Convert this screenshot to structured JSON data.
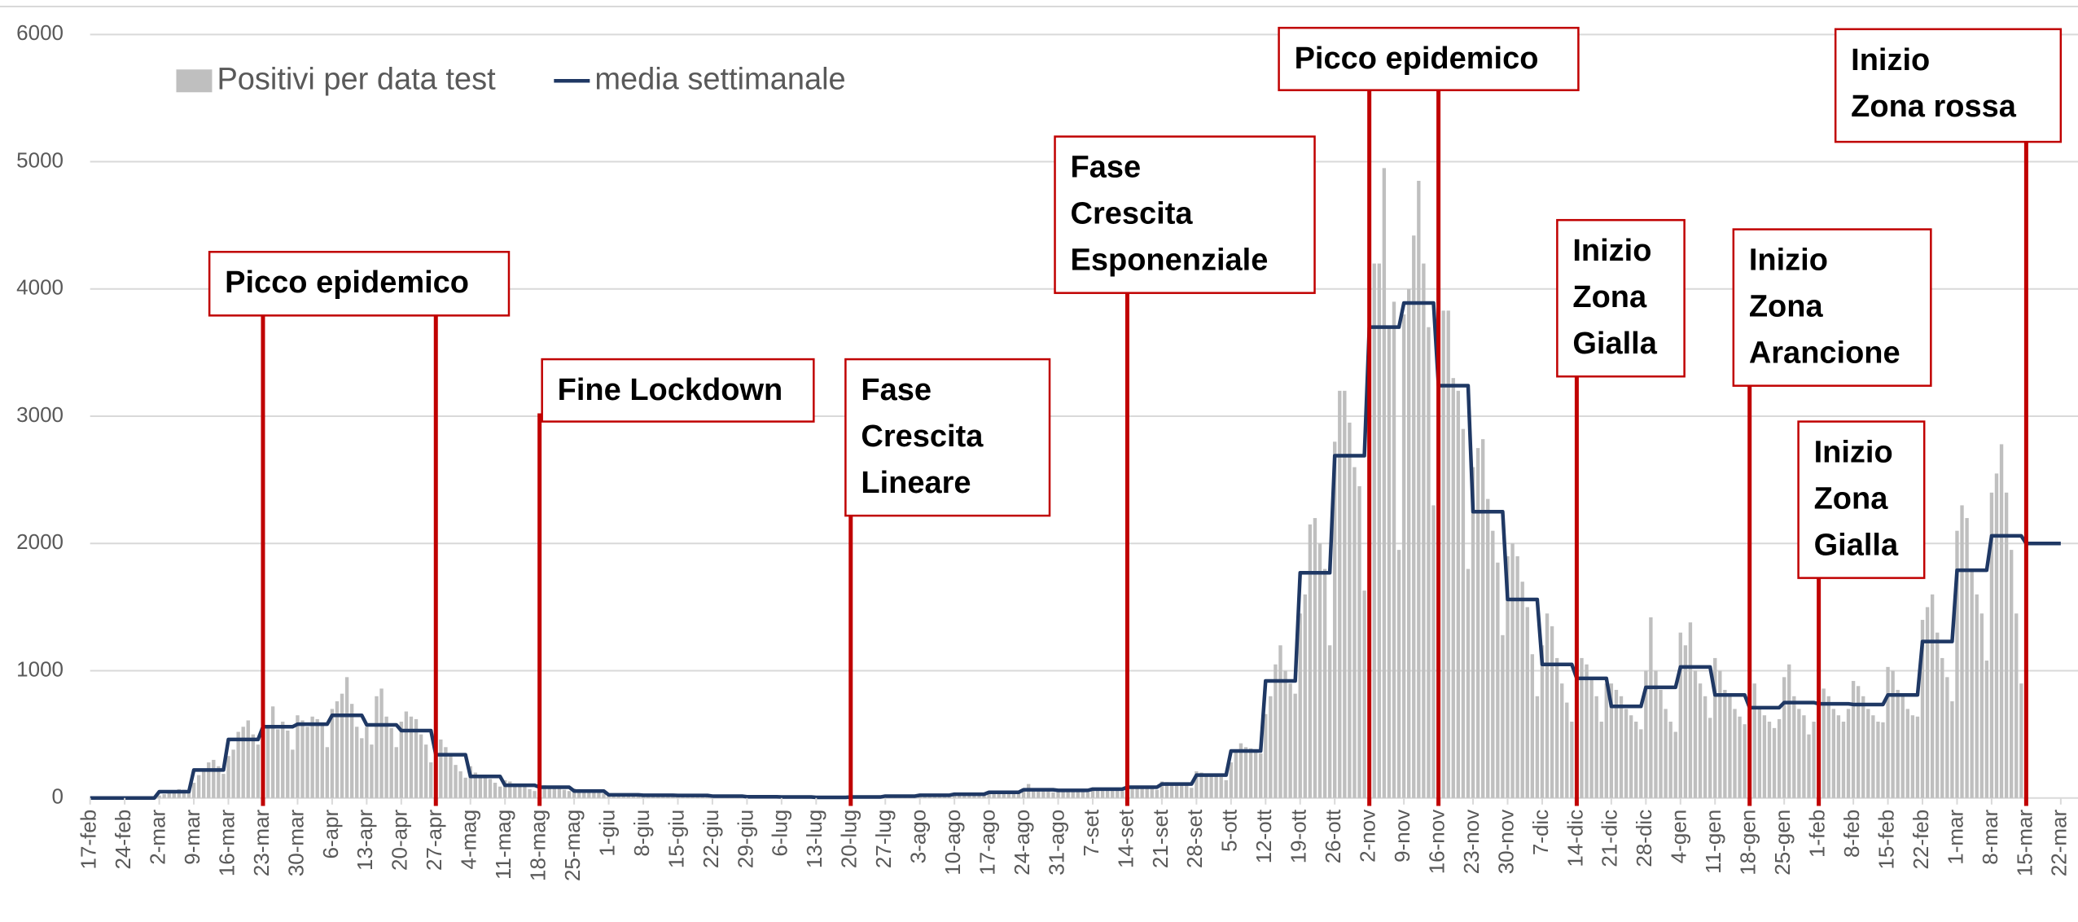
{
  "chart_data": {
    "type": "bar",
    "categories": [
      "17-feb",
      null,
      null,
      null,
      null,
      null,
      null,
      "24-feb",
      null,
      null,
      null,
      null,
      null,
      null,
      "2-mar",
      null,
      null,
      null,
      null,
      null,
      null,
      "9-mar",
      null,
      null,
      null,
      null,
      null,
      null,
      "16-mar",
      null,
      null,
      null,
      null,
      null,
      null,
      "23-mar",
      null,
      null,
      null,
      null,
      null,
      null,
      "30-mar",
      null,
      null,
      null,
      null,
      null,
      null,
      "6-apr",
      null,
      null,
      null,
      null,
      null,
      null,
      "13-apr",
      null,
      null,
      null,
      null,
      null,
      null,
      "20-apr",
      null,
      null,
      null,
      null,
      null,
      null,
      "27-apr",
      null,
      null,
      null,
      null,
      null,
      null,
      "4-mag",
      null,
      null,
      null,
      null,
      null,
      null,
      "11-mag",
      null,
      null,
      null,
      null,
      null,
      null,
      "18-mag",
      null,
      null,
      null,
      null,
      null,
      null,
      "25-mag",
      null,
      null,
      null,
      null,
      null,
      null,
      "1-giu",
      null,
      null,
      null,
      null,
      null,
      null,
      "8-giu",
      null,
      null,
      null,
      null,
      null,
      null,
      "15-giu",
      null,
      null,
      null,
      null,
      null,
      null,
      "22-giu",
      null,
      null,
      null,
      null,
      null,
      null,
      "29-giu",
      null,
      null,
      null,
      null,
      null,
      null,
      "6-lug",
      null,
      null,
      null,
      null,
      null,
      null,
      "13-lug",
      null,
      null,
      null,
      null,
      null,
      null,
      "20-lug",
      null,
      null,
      null,
      null,
      null,
      null,
      "27-lug",
      null,
      null,
      null,
      null,
      null,
      null,
      "3-ago",
      null,
      null,
      null,
      null,
      null,
      null,
      "10-ago",
      null,
      null,
      null,
      null,
      null,
      null,
      "17-ago",
      null,
      null,
      null,
      null,
      null,
      null,
      "24-ago",
      null,
      null,
      null,
      null,
      null,
      null,
      "31-ago",
      null,
      null,
      null,
      null,
      null,
      null,
      "7-set",
      null,
      null,
      null,
      null,
      null,
      null,
      "14-set",
      null,
      null,
      null,
      null,
      null,
      null,
      "21-set",
      null,
      null,
      null,
      null,
      null,
      null,
      "28-set",
      null,
      null,
      null,
      null,
      null,
      null,
      "5-ott",
      null,
      null,
      null,
      null,
      null,
      null,
      "12-ott",
      null,
      null,
      null,
      null,
      null,
      null,
      "19-ott",
      null,
      null,
      null,
      null,
      null,
      null,
      "26-ott",
      null,
      null,
      null,
      null,
      null,
      null,
      "2-nov",
      null,
      null,
      null,
      null,
      null,
      null,
      "9-nov",
      null,
      null,
      null,
      null,
      null,
      null,
      "16-nov",
      null,
      null,
      null,
      null,
      null,
      null,
      "23-nov",
      null,
      null,
      null,
      null,
      null,
      null,
      "30-nov",
      null,
      null,
      null,
      null,
      null,
      null,
      "7-dic",
      null,
      null,
      null,
      null,
      null,
      null,
      "14-dic",
      null,
      null,
      null,
      null,
      null,
      null,
      "21-dic",
      null,
      null,
      null,
      null,
      null,
      null,
      "28-dic",
      null,
      null,
      null,
      null,
      null,
      null,
      "4-gen",
      null,
      null,
      null,
      null,
      null,
      null,
      "11-gen",
      null,
      null,
      null,
      null,
      null,
      null,
      "18-gen",
      null,
      null,
      null,
      null,
      null,
      null,
      "25-gen",
      null,
      null,
      null,
      null,
      null,
      null,
      "1-feb",
      null,
      null,
      null,
      null,
      null,
      null,
      "8-feb",
      null,
      null,
      null,
      null,
      null,
      null,
      "15-feb",
      null,
      null,
      null,
      null,
      null,
      null,
      "22-feb",
      null,
      null,
      null,
      null,
      null,
      null,
      "1-mar",
      null,
      null,
      null,
      null,
      null,
      null,
      "8-mar",
      null,
      null,
      null,
      null,
      null,
      null,
      "15-mar",
      null,
      null,
      null,
      null,
      null,
      null,
      "22-mar"
    ],
    "series": [
      {
        "name": "Positivi per data test",
        "type": "bar",
        "color": "#bfbfbf",
        "values": [
          0,
          0,
          0,
          0,
          0,
          0,
          0,
          0,
          1,
          3,
          2,
          5,
          3,
          8,
          20,
          30,
          45,
          50,
          70,
          65,
          60,
          120,
          180,
          230,
          280,
          300,
          250,
          190,
          330,
          380,
          520,
          560,
          610,
          500,
          420,
          600,
          560,
          720,
          540,
          600,
          530,
          380,
          650,
          610,
          560,
          640,
          620,
          590,
          400,
          700,
          760,
          820,
          950,
          740,
          560,
          470,
          560,
          420,
          800,
          860,
          640,
          550,
          400,
          600,
          680,
          640,
          620,
          500,
          420,
          280,
          560,
          460,
          400,
          330,
          260,
          210,
          160,
          250,
          200,
          180,
          170,
          150,
          120,
          90,
          140,
          130,
          110,
          100,
          95,
          70,
          55,
          110,
          100,
          95,
          85,
          80,
          65,
          55,
          75,
          70,
          60,
          55,
          50,
          40,
          35,
          35,
          30,
          28,
          25,
          22,
          20,
          15,
          30,
          25,
          22,
          20,
          20,
          18,
          14,
          25,
          24,
          22,
          20,
          18,
          17,
          12,
          20,
          18,
          16,
          15,
          14,
          12,
          10,
          14,
          12,
          11,
          10,
          9,
          8,
          6,
          11,
          10,
          9,
          8,
          7,
          6,
          5,
          7,
          6,
          5,
          5,
          5,
          4,
          3,
          10,
          9,
          9,
          8,
          8,
          7,
          5,
          18,
          17,
          16,
          15,
          14,
          13,
          10,
          26,
          25,
          24,
          22,
          21,
          20,
          16,
          35,
          34,
          32,
          30,
          29,
          27,
          22,
          52,
          50,
          48,
          45,
          44,
          42,
          35,
          75,
          110,
          70,
          65,
          60,
          55,
          45,
          70,
          68,
          62,
          60,
          58,
          55,
          45,
          80,
          78,
          75,
          70,
          68,
          65,
          55,
          100,
          95,
          90,
          85,
          82,
          78,
          65,
          130,
          125,
          118,
          110,
          105,
          100,
          80,
          210,
          200,
          190,
          180,
          175,
          165,
          140,
          280,
          380,
          430,
          400,
          390,
          360,
          350,
          660,
          800,
          1050,
          1200,
          1000,
          900,
          820,
          1450,
          1600,
          2150,
          2200,
          2000,
          1800,
          1200,
          2800,
          3200,
          3200,
          2950,
          2600,
          2450,
          1630,
          3400,
          4200,
          4200,
          4950,
          3700,
          3900,
          1950,
          3800,
          4000,
          4420,
          4850,
          4200,
          3700,
          2300,
          3850,
          3830,
          3830,
          3300,
          3200,
          2900,
          1800,
          2600,
          2750,
          2820,
          2350,
          2100,
          1850,
          1280,
          1900,
          2000,
          1900,
          1700,
          1500,
          1130,
          800,
          1200,
          1450,
          1350,
          1100,
          900,
          750,
          600,
          1180,
          1100,
          1050,
          950,
          800,
          600,
          900,
          900,
          850,
          800,
          700,
          650,
          600,
          540,
          1000,
          1420,
          1000,
          850,
          700,
          600,
          520,
          1300,
          1200,
          1380,
          1000,
          900,
          800,
          630,
          1100,
          1000,
          850,
          800,
          700,
          640,
          580,
          950,
          900,
          700,
          650,
          600,
          550,
          620,
          950,
          1050,
          800,
          700,
          650,
          500,
          600,
          870,
          860,
          800,
          700,
          650,
          600,
          700,
          920,
          880,
          800,
          700,
          650,
          600,
          595,
          1030,
          1000,
          850,
          800,
          700,
          650,
          640,
          1400,
          1500,
          1600,
          1300,
          1100,
          950,
          760,
          2100,
          2300,
          2200,
          1800,
          1600,
          1450,
          1080,
          2400,
          2550,
          2780,
          2400,
          1950,
          1450,
          900,
          1050,
          null,
          null,
          null,
          null,
          null,
          null,
          null
        ]
      },
      {
        "name": "media settimanale",
        "type": "line",
        "color": "#1f3864",
        "values": [
          0,
          0,
          0,
          0,
          0,
          0,
          0,
          0,
          0,
          0,
          0,
          0,
          0,
          0,
          50,
          50,
          50,
          50,
          50,
          50,
          50,
          220,
          220,
          220,
          220,
          220,
          220,
          220,
          460,
          460,
          460,
          460,
          460,
          460,
          460,
          560,
          560,
          560,
          560,
          560,
          560,
          560,
          580,
          580,
          580,
          580,
          580,
          580,
          580,
          650,
          650,
          650,
          650,
          650,
          650,
          650,
          575,
          575,
          575,
          575,
          575,
          575,
          575,
          530,
          530,
          530,
          530,
          530,
          530,
          530,
          340,
          340,
          340,
          340,
          340,
          340,
          340,
          170,
          170,
          170,
          170,
          170,
          170,
          170,
          100,
          100,
          100,
          100,
          100,
          100,
          100,
          85,
          85,
          85,
          85,
          85,
          85,
          85,
          55,
          55,
          55,
          55,
          55,
          55,
          55,
          25,
          25,
          25,
          25,
          25,
          25,
          25,
          22,
          22,
          22,
          22,
          22,
          22,
          22,
          20,
          20,
          20,
          20,
          20,
          20,
          20,
          15,
          15,
          15,
          15,
          15,
          15,
          15,
          10,
          10,
          10,
          10,
          10,
          10,
          10,
          8,
          8,
          8,
          8,
          8,
          8,
          8,
          5,
          5,
          5,
          5,
          5,
          5,
          5,
          8,
          8,
          8,
          8,
          8,
          8,
          8,
          15,
          15,
          15,
          15,
          15,
          15,
          15,
          22,
          22,
          22,
          22,
          22,
          22,
          22,
          30,
          30,
          30,
          30,
          30,
          30,
          30,
          45,
          45,
          45,
          45,
          45,
          45,
          45,
          65,
          65,
          65,
          65,
          65,
          65,
          65,
          60,
          60,
          60,
          60,
          60,
          60,
          60,
          70,
          70,
          70,
          70,
          70,
          70,
          70,
          85,
          85,
          85,
          85,
          85,
          85,
          85,
          110,
          110,
          110,
          110,
          110,
          110,
          110,
          180,
          180,
          180,
          180,
          180,
          180,
          180,
          370,
          370,
          370,
          370,
          370,
          370,
          370,
          920,
          920,
          920,
          920,
          920,
          920,
          920,
          1770,
          1770,
          1770,
          1770,
          1770,
          1770,
          1770,
          2690,
          2690,
          2690,
          2690,
          2690,
          2690,
          2690,
          3700,
          3700,
          3700,
          3700,
          3700,
          3700,
          3700,
          3890,
          3890,
          3890,
          3890,
          3890,
          3890,
          3890,
          3240,
          3240,
          3240,
          3240,
          3240,
          3240,
          3240,
          2250,
          2250,
          2250,
          2250,
          2250,
          2250,
          2250,
          1560,
          1560,
          1560,
          1560,
          1560,
          1560,
          1560,
          1050,
          1050,
          1050,
          1050,
          1050,
          1050,
          1050,
          940,
          940,
          940,
          940,
          940,
          940,
          940,
          720,
          720,
          720,
          720,
          720,
          720,
          720,
          870,
          870,
          870,
          870,
          870,
          870,
          870,
          1030,
          1030,
          1030,
          1030,
          1030,
          1030,
          1030,
          810,
          810,
          810,
          810,
          810,
          810,
          810,
          710,
          710,
          710,
          710,
          710,
          710,
          710,
          750,
          750,
          750,
          750,
          750,
          750,
          750,
          740,
          740,
          740,
          740,
          740,
          740,
          740,
          735,
          735,
          735,
          735,
          735,
          735,
          735,
          810,
          810,
          810,
          810,
          810,
          810,
          810,
          1230,
          1230,
          1230,
          1230,
          1230,
          1230,
          1230,
          1790,
          1790,
          1790,
          1790,
          1790,
          1790,
          1790,
          2060,
          2060,
          2060,
          2060,
          2060,
          2060,
          2060,
          2000,
          2000,
          2000,
          2000,
          2000,
          2000,
          2000,
          2000
        ]
      }
    ],
    "ylim": [
      0,
      6000
    ],
    "yticks": [
      0,
      1000,
      2000,
      3000,
      4000,
      5000,
      6000
    ],
    "grid": true,
    "annotation_color": "#c00000",
    "annotations": [
      {
        "lines": [
          "Picco epidemico"
        ],
        "dates": [
          "23-mar",
          "27-apr"
        ]
      },
      {
        "lines": [
          "Fine Lockdown"
        ],
        "dates": [
          "18-mag"
        ]
      },
      {
        "lines": [
          "Fase",
          "Crescita",
          "Lineare"
        ],
        "dates": [
          "20-lug"
        ]
      },
      {
        "lines": [
          "Fase",
          "Crescita",
          "Esponenziale"
        ],
        "dates": [
          "14-set"
        ]
      },
      {
        "lines": [
          "Picco epidemico"
        ],
        "dates": [
          "2-nov",
          "16-nov"
        ]
      },
      {
        "lines": [
          "Inizio",
          "Zona",
          "Gialla"
        ],
        "dates": [
          "14-dic"
        ]
      },
      {
        "lines": [
          "Inizio",
          "Zona",
          "Arancione"
        ],
        "dates": [
          "18-gen"
        ]
      },
      {
        "lines": [
          "Inizio",
          "Zona",
          "Gialla"
        ],
        "dates": [
          "1-feb"
        ]
      },
      {
        "lines": [
          "Inizio",
          "Zona rossa"
        ],
        "dates": [
          "15-mar"
        ]
      }
    ]
  }
}
